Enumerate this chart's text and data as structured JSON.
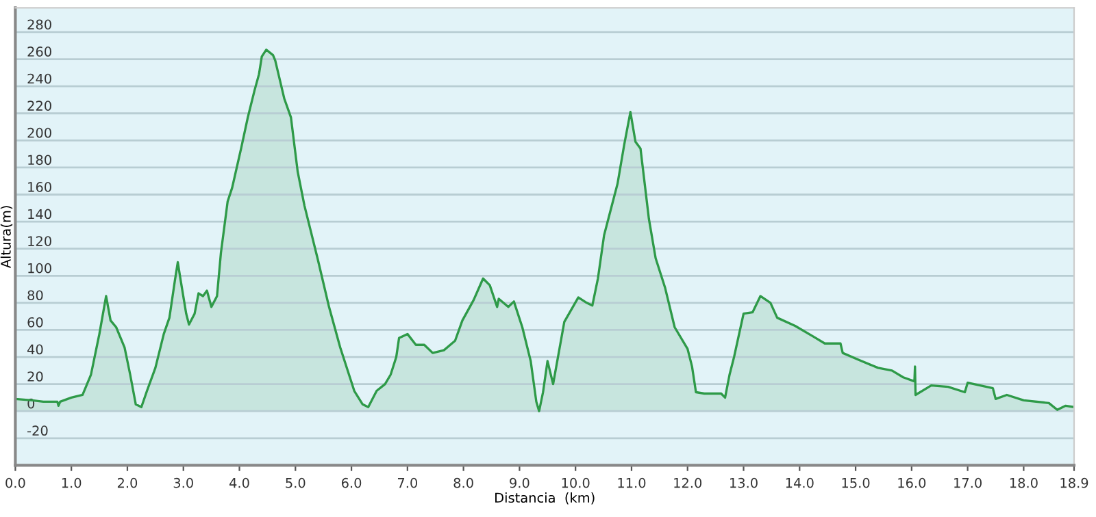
{
  "chart_data": {
    "type": "area",
    "xlabel": "Distancia  (km)",
    "ylabel": "Altura(m)",
    "xlim": [
      0,
      18.9
    ],
    "ylim": [
      -40,
      298
    ],
    "xticks": [
      {
        "value": 0,
        "label": "0.0"
      },
      {
        "value": 1,
        "label": "1.0"
      },
      {
        "value": 2,
        "label": "2.0"
      },
      {
        "value": 3,
        "label": "3.0"
      },
      {
        "value": 4,
        "label": "4.0"
      },
      {
        "value": 5,
        "label": "5.0"
      },
      {
        "value": 6,
        "label": "6.0"
      },
      {
        "value": 7,
        "label": "7.0"
      },
      {
        "value": 8,
        "label": "8.0"
      },
      {
        "value": 9,
        "label": "9.0"
      },
      {
        "value": 10,
        "label": "10.0"
      },
      {
        "value": 11,
        "label": "11.0"
      },
      {
        "value": 12,
        "label": "12.0"
      },
      {
        "value": 13,
        "label": "13.0"
      },
      {
        "value": 14,
        "label": "14.0"
      },
      {
        "value": 15,
        "label": "15.0"
      },
      {
        "value": 16,
        "label": "16.0"
      },
      {
        "value": 17,
        "label": "17.0"
      },
      {
        "value": 18,
        "label": "18.0"
      },
      {
        "value": 18.9,
        "label": "18.9"
      }
    ],
    "yticks": [
      -20,
      0,
      20,
      40,
      60,
      80,
      100,
      120,
      140,
      160,
      180,
      200,
      220,
      240,
      260,
      280
    ],
    "grid": "y",
    "legend": false,
    "series": [
      {
        "color": "#2e9a48",
        "x": [
          0.0,
          0.3,
          0.5,
          0.75,
          0.77,
          0.8,
          1.0,
          1.2,
          1.35,
          1.5,
          1.62,
          1.7,
          1.8,
          1.95,
          2.05,
          2.15,
          2.25,
          2.35,
          2.5,
          2.65,
          2.75,
          2.85,
          2.9,
          2.95,
          3.05,
          3.1,
          3.2,
          3.27,
          3.35,
          3.42,
          3.5,
          3.6,
          3.67,
          3.79,
          3.87,
          4.03,
          4.15,
          4.27,
          4.35,
          4.4,
          4.48,
          4.6,
          4.64,
          4.8,
          4.92,
          5.04,
          5.16,
          5.28,
          5.4,
          5.6,
          5.8,
          6.05,
          6.2,
          6.3,
          6.45,
          6.6,
          6.7,
          6.8,
          6.85,
          7.0,
          7.15,
          7.3,
          7.45,
          7.65,
          7.85,
          7.98,
          8.18,
          8.35,
          8.47,
          8.6,
          8.63,
          8.8,
          8.9,
          9.05,
          9.2,
          9.3,
          9.35,
          9.42,
          9.5,
          9.6,
          9.8,
          10.05,
          10.2,
          10.3,
          10.4,
          10.51,
          10.63,
          10.75,
          10.87,
          10.98,
          11.07,
          11.16,
          11.31,
          11.43,
          11.6,
          11.77,
          12.0,
          12.08,
          12.15,
          12.3,
          12.6,
          12.67,
          12.75,
          12.83,
          13.0,
          13.16,
          13.3,
          13.48,
          13.6,
          13.92,
          14.25,
          14.45,
          14.73,
          14.77,
          15.05,
          15.4,
          15.65,
          15.85,
          16.05,
          16.06,
          16.07,
          16.35,
          16.65,
          16.95,
          17.0,
          17.45,
          17.5,
          17.7,
          18.0,
          18.45,
          18.6,
          18.75,
          18.9
        ],
        "values": [
          9,
          8,
          7,
          7,
          4,
          7,
          10,
          12,
          27,
          57,
          85,
          67,
          62,
          47,
          27,
          5,
          3,
          15,
          32,
          57,
          69,
          97,
          110,
          97,
          72,
          64,
          72,
          87,
          85,
          89,
          77,
          85,
          117,
          155,
          165,
          194,
          217,
          237,
          249,
          262,
          267,
          263,
          259,
          231,
          217,
          177,
          152,
          132,
          112,
          77,
          47,
          15,
          5,
          3,
          15,
          20,
          27,
          40,
          54,
          57,
          49,
          49,
          43,
          45,
          52,
          67,
          82,
          98,
          93,
          77,
          83,
          77,
          81,
          62,
          37,
          7,
          0,
          14,
          37,
          20,
          66,
          84,
          80,
          78,
          98,
          130,
          149,
          168,
          197,
          221,
          199,
          194,
          142,
          113,
          91,
          62,
          46,
          33,
          14,
          13,
          13,
          10,
          27,
          40,
          72,
          73,
          85,
          80,
          69,
          63,
          55,
          50,
          50,
          43,
          38,
          32,
          30,
          25,
          22,
          33,
          12,
          19,
          18,
          14,
          21,
          17,
          9,
          12,
          8,
          6,
          1,
          4,
          3
        ]
      }
    ]
  }
}
